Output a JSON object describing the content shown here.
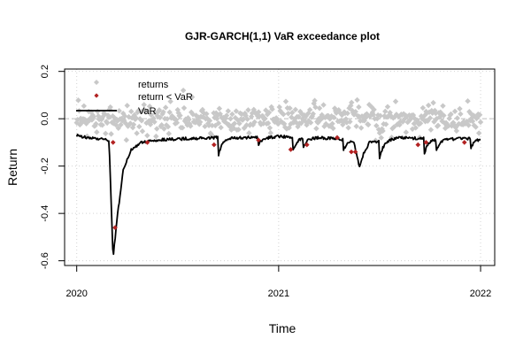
{
  "chart_data": {
    "type": "scatter",
    "title": "GJR-GARCH(1,1) VaR exceedance plot",
    "xlabel": "Time",
    "ylabel": "Return",
    "xlim": [
      2019.94,
      2022.07
    ],
    "ylim": [
      -0.62,
      0.21
    ],
    "x_ticks": [
      {
        "value": 2020,
        "label": "2020"
      },
      {
        "value": 2021,
        "label": "2021"
      },
      {
        "value": 2022,
        "label": "2022"
      }
    ],
    "y_ticks": [
      {
        "value": 0.2,
        "label": "0.2"
      },
      {
        "value": 0.0,
        "label": "0.0"
      },
      {
        "value": -0.2,
        "label": "-0.2"
      },
      {
        "value": -0.4,
        "label": "-0.4"
      },
      {
        "value": -0.6,
        "label": "-0.6"
      }
    ],
    "x_start": 2020.0,
    "x_end": 2022.0,
    "n_points": 505,
    "reference_line": 0.0,
    "grid": true,
    "legend_position": "top-left",
    "colors": {
      "returns": "#c8c8c8",
      "exceedance": "#b22222",
      "var": "#000000",
      "reference": "#bdbdbd"
    },
    "legend": [
      {
        "label": "returns",
        "marker": "diamond",
        "color": "#c8c8c8"
      },
      {
        "label": "return < VaR",
        "marker": "diamond",
        "color": "#b22222"
      },
      {
        "label": "VaR",
        "marker": "line",
        "color": "#000000"
      }
    ],
    "var_anchors": [
      [
        2020.0,
        -0.07
      ],
      [
        2020.05,
        -0.08
      ],
      [
        2020.1,
        -0.085
      ],
      [
        2020.16,
        -0.09
      ],
      [
        2020.18,
        -0.59
      ],
      [
        2020.2,
        -0.42
      ],
      [
        2020.23,
        -0.22
      ],
      [
        2020.27,
        -0.13
      ],
      [
        2020.32,
        -0.1
      ],
      [
        2020.4,
        -0.09
      ],
      [
        2020.5,
        -0.085
      ],
      [
        2020.7,
        -0.08
      ],
      [
        2020.9,
        -0.08
      ],
      [
        2021.0,
        -0.075
      ],
      [
        2021.2,
        -0.08
      ],
      [
        2021.37,
        -0.09
      ],
      [
        2021.4,
        -0.2
      ],
      [
        2021.42,
        -0.15
      ],
      [
        2021.45,
        -0.1
      ],
      [
        2021.6,
        -0.08
      ],
      [
        2021.8,
        -0.085
      ],
      [
        2022.0,
        -0.085
      ]
    ],
    "var_dips": [
      {
        "x": 2020.7,
        "depth": 0.08
      },
      {
        "x": 2020.9,
        "depth": 0.03
      },
      {
        "x": 2021.07,
        "depth": 0.06
      },
      {
        "x": 2021.12,
        "depth": 0.04
      },
      {
        "x": 2021.32,
        "depth": 0.05
      },
      {
        "x": 2021.5,
        "depth": 0.07
      },
      {
        "x": 2021.72,
        "depth": 0.07
      },
      {
        "x": 2021.78,
        "depth": 0.05
      },
      {
        "x": 2021.95,
        "depth": 0.04
      }
    ],
    "exceedances": [
      {
        "x": 2020.18,
        "y": -0.1
      },
      {
        "x": 2020.19,
        "y": -0.46
      },
      {
        "x": 2020.35,
        "y": -0.1
      },
      {
        "x": 2020.68,
        "y": -0.11
      },
      {
        "x": 2020.9,
        "y": -0.09
      },
      {
        "x": 2021.06,
        "y": -0.13
      },
      {
        "x": 2021.14,
        "y": -0.11
      },
      {
        "x": 2021.29,
        "y": -0.08
      },
      {
        "x": 2021.36,
        "y": -0.14
      },
      {
        "x": 2021.38,
        "y": -0.14
      },
      {
        "x": 2021.69,
        "y": -0.11
      },
      {
        "x": 2021.73,
        "y": -0.1
      },
      {
        "x": 2021.92,
        "y": -0.1
      }
    ]
  }
}
